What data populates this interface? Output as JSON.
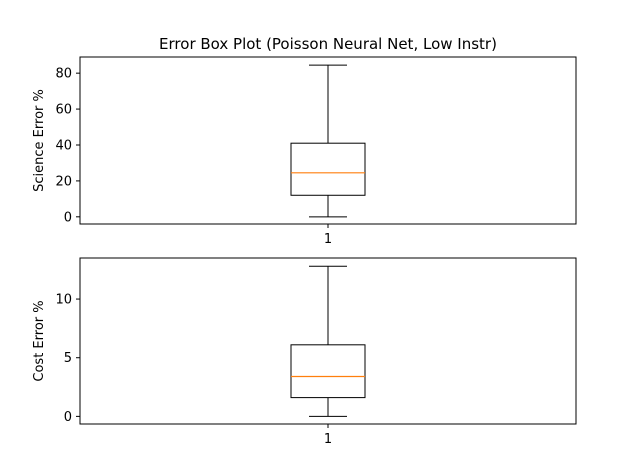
{
  "figure": {
    "title": "Error Box Plot (Poisson Neural Net, Low Instr)"
  },
  "colors": {
    "box": "#000000",
    "median": "#ff7f0e",
    "background": "#ffffff"
  },
  "chart_data": [
    {
      "type": "box",
      "ylabel": "Science Error %",
      "xlabel": "",
      "categories": [
        "1"
      ],
      "ylim": [
        -4,
        89
      ],
      "yticks": [
        0,
        20,
        40,
        60,
        80
      ],
      "box": {
        "whisker_low": 0,
        "q1": 12,
        "median": 24.5,
        "q3": 41,
        "whisker_high": 84.5
      },
      "grid": false
    },
    {
      "type": "box",
      "ylabel": "Cost Error %",
      "xlabel": "",
      "categories": [
        "1"
      ],
      "ylim": [
        -0.65,
        13.5
      ],
      "yticks": [
        0,
        5,
        10
      ],
      "box": {
        "whisker_low": 0,
        "q1": 1.6,
        "median": 3.4,
        "q3": 6.1,
        "whisker_high": 12.8
      },
      "grid": false
    }
  ]
}
